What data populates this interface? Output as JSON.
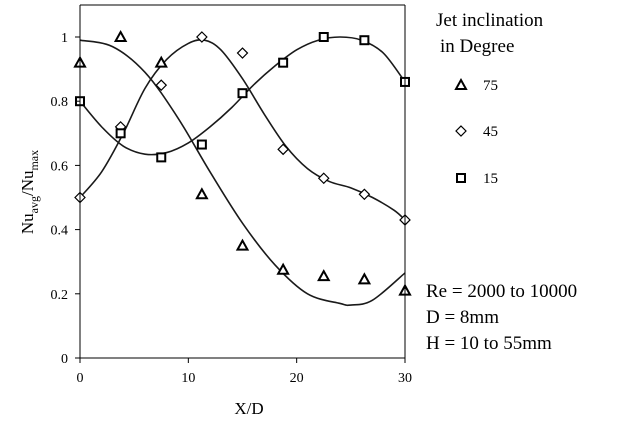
{
  "chart_data": {
    "type": "scatter",
    "xlabel": "X/D",
    "ylabel": {
      "base": "Nu",
      "sub1": "avg",
      "sep": "/Nu",
      "sub2": "max"
    },
    "xlim": [
      0,
      30
    ],
    "ylim": [
      0,
      1.1
    ],
    "xticks": [
      0,
      10,
      20,
      30
    ],
    "yticks": [
      0,
      0.2,
      0.4,
      0.6,
      0.8,
      1
    ],
    "ytick_labels": [
      "0",
      "0.2",
      "0.4",
      "0.6",
      "0.8",
      "1"
    ],
    "grid": false,
    "legend_title_lines": [
      "Jet inclination",
      "in Degree"
    ],
    "legend_position": "right",
    "series": [
      {
        "name": "75",
        "marker": "triangle",
        "x": [
          0,
          3.75,
          7.5,
          11.25,
          15,
          18.75,
          22.5,
          26.25,
          30
        ],
        "y": [
          0.92,
          1.0,
          0.92,
          0.51,
          0.35,
          0.275,
          0.255,
          0.245,
          0.21
        ],
        "fit_curve": [
          [
            0,
            0.99
          ],
          [
            3,
            0.97
          ],
          [
            6,
            0.89
          ],
          [
            9,
            0.75
          ],
          [
            12,
            0.58
          ],
          [
            15,
            0.42
          ],
          [
            18,
            0.29
          ],
          [
            21,
            0.2
          ],
          [
            24,
            0.17
          ],
          [
            25,
            0.165
          ],
          [
            27,
            0.18
          ],
          [
            30,
            0.265
          ]
        ]
      },
      {
        "name": "45",
        "marker": "diamond",
        "x": [
          0,
          3.75,
          7.5,
          11.25,
          15,
          18.75,
          22.5,
          26.25,
          30
        ],
        "y": [
          0.5,
          0.72,
          0.85,
          1.0,
          0.95,
          0.65,
          0.56,
          0.51,
          0.43
        ],
        "fit_curve": [
          [
            0,
            0.5
          ],
          [
            2,
            0.58
          ],
          [
            4,
            0.7
          ],
          [
            6,
            0.84
          ],
          [
            8,
            0.93
          ],
          [
            10,
            0.98
          ],
          [
            11.5,
            0.99
          ],
          [
            13,
            0.96
          ],
          [
            15,
            0.87
          ],
          [
            17,
            0.76
          ],
          [
            19,
            0.66
          ],
          [
            21,
            0.59
          ],
          [
            23,
            0.55
          ],
          [
            25,
            0.53
          ],
          [
            27,
            0.5
          ],
          [
            29,
            0.46
          ],
          [
            30,
            0.43
          ]
        ]
      },
      {
        "name": "15",
        "marker": "square",
        "x": [
          0,
          3.75,
          7.5,
          11.25,
          15,
          18.75,
          22.5,
          26.25,
          30
        ],
        "y": [
          0.8,
          0.7,
          0.625,
          0.665,
          0.825,
          0.92,
          1.0,
          0.99,
          0.86
        ],
        "fit_curve": [
          [
            0,
            0.8
          ],
          [
            2,
            0.72
          ],
          [
            4,
            0.66
          ],
          [
            6,
            0.635
          ],
          [
            8,
            0.64
          ],
          [
            10,
            0.67
          ],
          [
            12,
            0.72
          ],
          [
            14,
            0.78
          ],
          [
            16,
            0.85
          ],
          [
            18,
            0.91
          ],
          [
            20,
            0.96
          ],
          [
            22,
            0.99
          ],
          [
            24,
            1.0
          ],
          [
            26,
            0.99
          ],
          [
            28,
            0.95
          ],
          [
            30,
            0.86
          ]
        ]
      }
    ],
    "annotations": [
      "Re = 2000 to 10000",
      "D = 8mm",
      "H = 10 to 55mm"
    ]
  }
}
